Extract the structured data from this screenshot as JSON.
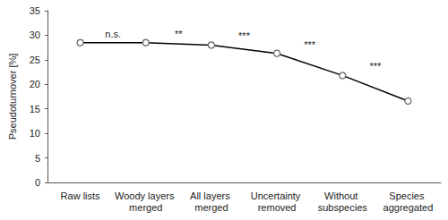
{
  "chart_data": {
    "type": "line",
    "y_label": "Pseudoturnover [%]",
    "categories": [
      "Raw lists",
      "Woody layers merged",
      "All layers merged",
      "Uncertainty removed",
      "Without subspecies",
      "Species aggregated"
    ],
    "values": [
      28.5,
      28.5,
      28.0,
      26.3,
      21.8,
      16.6
    ],
    "errors": [
      0.5,
      0.5,
      0.5,
      0.5,
      0.4,
      0.3
    ],
    "annotations": [
      "n.s.",
      "**",
      "***",
      "***",
      "***"
    ],
    "color": "#000000",
    "marker": "circle",
    "ylim": [
      0,
      35
    ],
    "yticks": [
      0,
      5,
      10,
      15,
      20,
      25,
      30,
      35
    ],
    "grid": false
  }
}
